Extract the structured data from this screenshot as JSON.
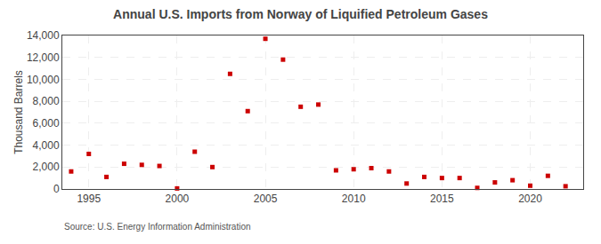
{
  "chart_data": {
    "type": "scatter",
    "title": "Annual U.S. Imports from Norway of Liquified Petroleum Gases",
    "ylabel": "Thousand Barrels",
    "annotations": [
      "Source: U.S. Energy Information Administration"
    ],
    "x": [
      1994,
      1995,
      1996,
      1997,
      1998,
      1999,
      2000,
      2001,
      2002,
      2003,
      2004,
      2005,
      2006,
      2007,
      2008,
      2009,
      2010,
      2011,
      2012,
      2013,
      2014,
      2015,
      2016,
      2017,
      2018,
      2019,
      2020,
      2021,
      2022
    ],
    "values": [
      1600,
      3200,
      1100,
      2300,
      2200,
      2100,
      50,
      3400,
      2000,
      10500,
      7100,
      13700,
      11800,
      7500,
      7700,
      1700,
      1800,
      1900,
      1600,
      500,
      1100,
      1000,
      1000,
      100,
      600,
      800,
      300,
      1200,
      250
    ],
    "color": "#cc0000",
    "marker": "square",
    "xlim": [
      1993.5,
      2023.0
    ],
    "xticks": [
      1995,
      2000,
      2005,
      2010,
      2015,
      2020
    ],
    "ylim": [
      0,
      14000
    ],
    "yticks": [
      0,
      {
        "value": 2000,
        "label": "2,000"
      },
      {
        "value": 4000,
        "label": "4,000"
      },
      {
        "value": 6000,
        "label": "6,000"
      },
      {
        "value": 8000,
        "label": "8,000"
      },
      {
        "value": 10000,
        "label": "10,000"
      },
      {
        "value": 12000,
        "label": "12,000"
      },
      {
        "value": 14000,
        "label": "14,000"
      }
    ],
    "grid": true
  }
}
